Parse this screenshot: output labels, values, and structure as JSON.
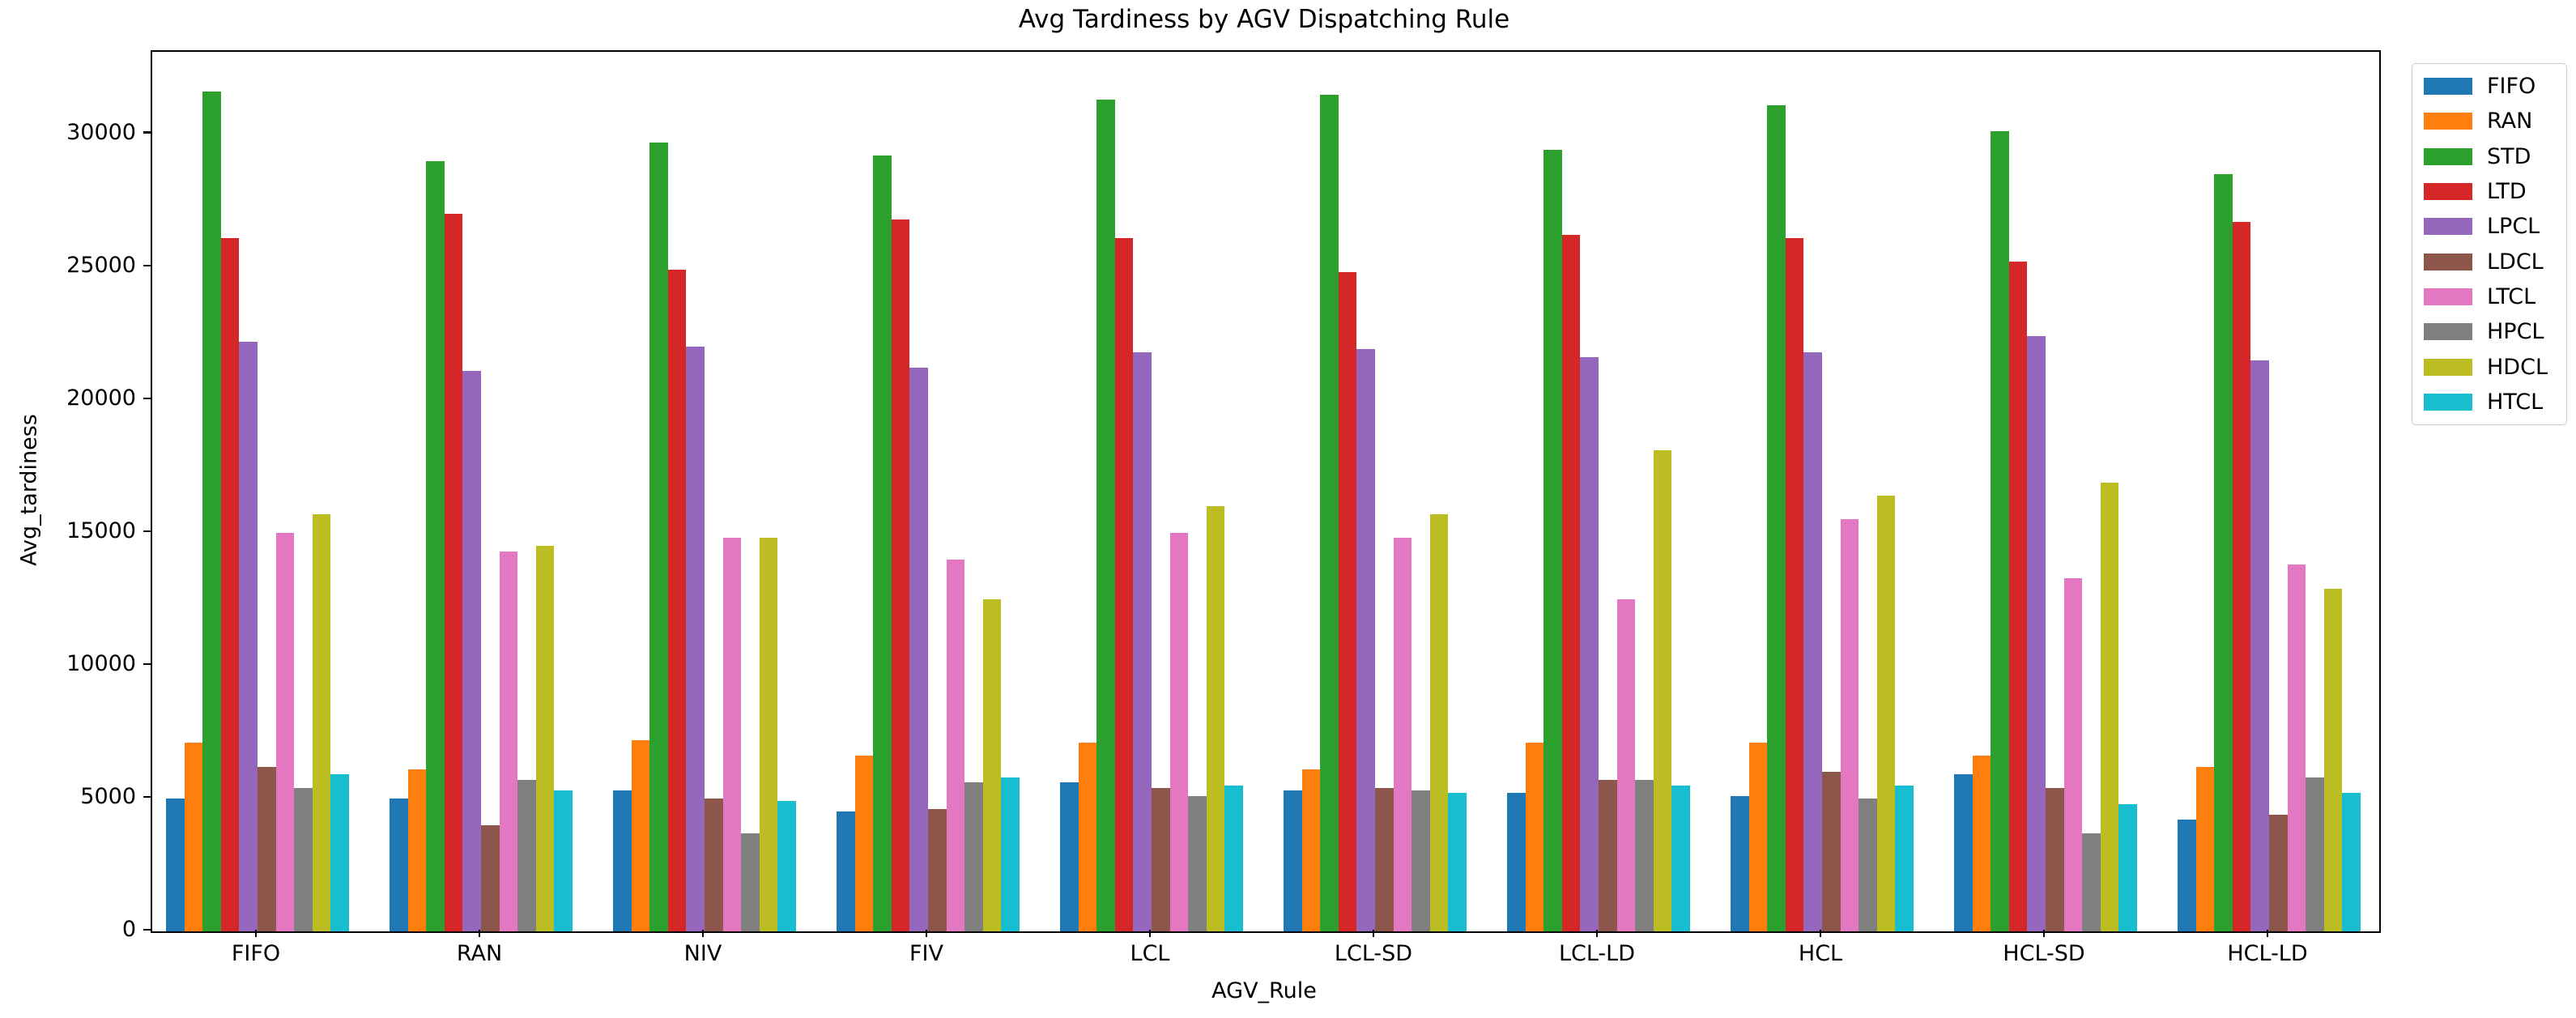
{
  "title": "Avg Tardiness by AGV Dispatching Rule",
  "chart_data": {
    "type": "bar",
    "title": "Avg Tardiness by AGV Dispatching Rule",
    "xlabel": "AGV_Rule",
    "ylabel": "Avg_tardiness",
    "categories": [
      "FIFO",
      "RAN",
      "NIV",
      "FIV",
      "LCL",
      "LCL-SD",
      "LCL-LD",
      "HCL",
      "HCL-SD",
      "HCL-LD"
    ],
    "series": [
      {
        "name": "FIFO",
        "color": "#1f77b4",
        "values": [
          5000,
          5000,
          5300,
          4500,
          5600,
          5300,
          5200,
          5100,
          5900,
          4200
        ]
      },
      {
        "name": "RAN",
        "color": "#ff7f0e",
        "values": [
          7100,
          6100,
          7200,
          6600,
          7100,
          6100,
          7100,
          7100,
          6600,
          6200
        ]
      },
      {
        "name": "STD",
        "color": "#2ca02c",
        "values": [
          31600,
          29000,
          29700,
          29200,
          31300,
          31500,
          29400,
          31100,
          30100,
          28500
        ]
      },
      {
        "name": "LTD",
        "color": "#d62728",
        "values": [
          26100,
          27000,
          24900,
          26800,
          26100,
          24800,
          26200,
          26100,
          25200,
          26700
        ]
      },
      {
        "name": "LPCL",
        "color": "#9467bd",
        "values": [
          22200,
          21100,
          22000,
          21200,
          21800,
          21900,
          21600,
          21800,
          22400,
          21500
        ]
      },
      {
        "name": "LDCL",
        "color": "#8c564b",
        "values": [
          6200,
          4000,
          5000,
          4600,
          5400,
          5400,
          5700,
          6000,
          5400,
          4400
        ]
      },
      {
        "name": "LTCL",
        "color": "#e377c2",
        "values": [
          15000,
          14300,
          14800,
          14000,
          15000,
          14800,
          12500,
          15500,
          13300,
          13800
        ]
      },
      {
        "name": "HPCL",
        "color": "#7f7f7f",
        "values": [
          5400,
          5700,
          3700,
          5600,
          5100,
          5300,
          5700,
          5000,
          3700,
          5800
        ]
      },
      {
        "name": "HDCL",
        "color": "#bcbd22",
        "values": [
          15700,
          14500,
          14800,
          12500,
          16000,
          15700,
          18100,
          16400,
          16900,
          12900
        ]
      },
      {
        "name": "HTCL",
        "color": "#17becf",
        "values": [
          5900,
          5300,
          4900,
          5800,
          5500,
          5200,
          5500,
          5500,
          4800,
          5200
        ]
      }
    ],
    "ylim": [
      0,
      33100
    ],
    "yticks": [
      0,
      5000,
      10000,
      15000,
      20000,
      25000,
      30000
    ],
    "grid": false,
    "legend_position": "upper right, outside plot"
  }
}
